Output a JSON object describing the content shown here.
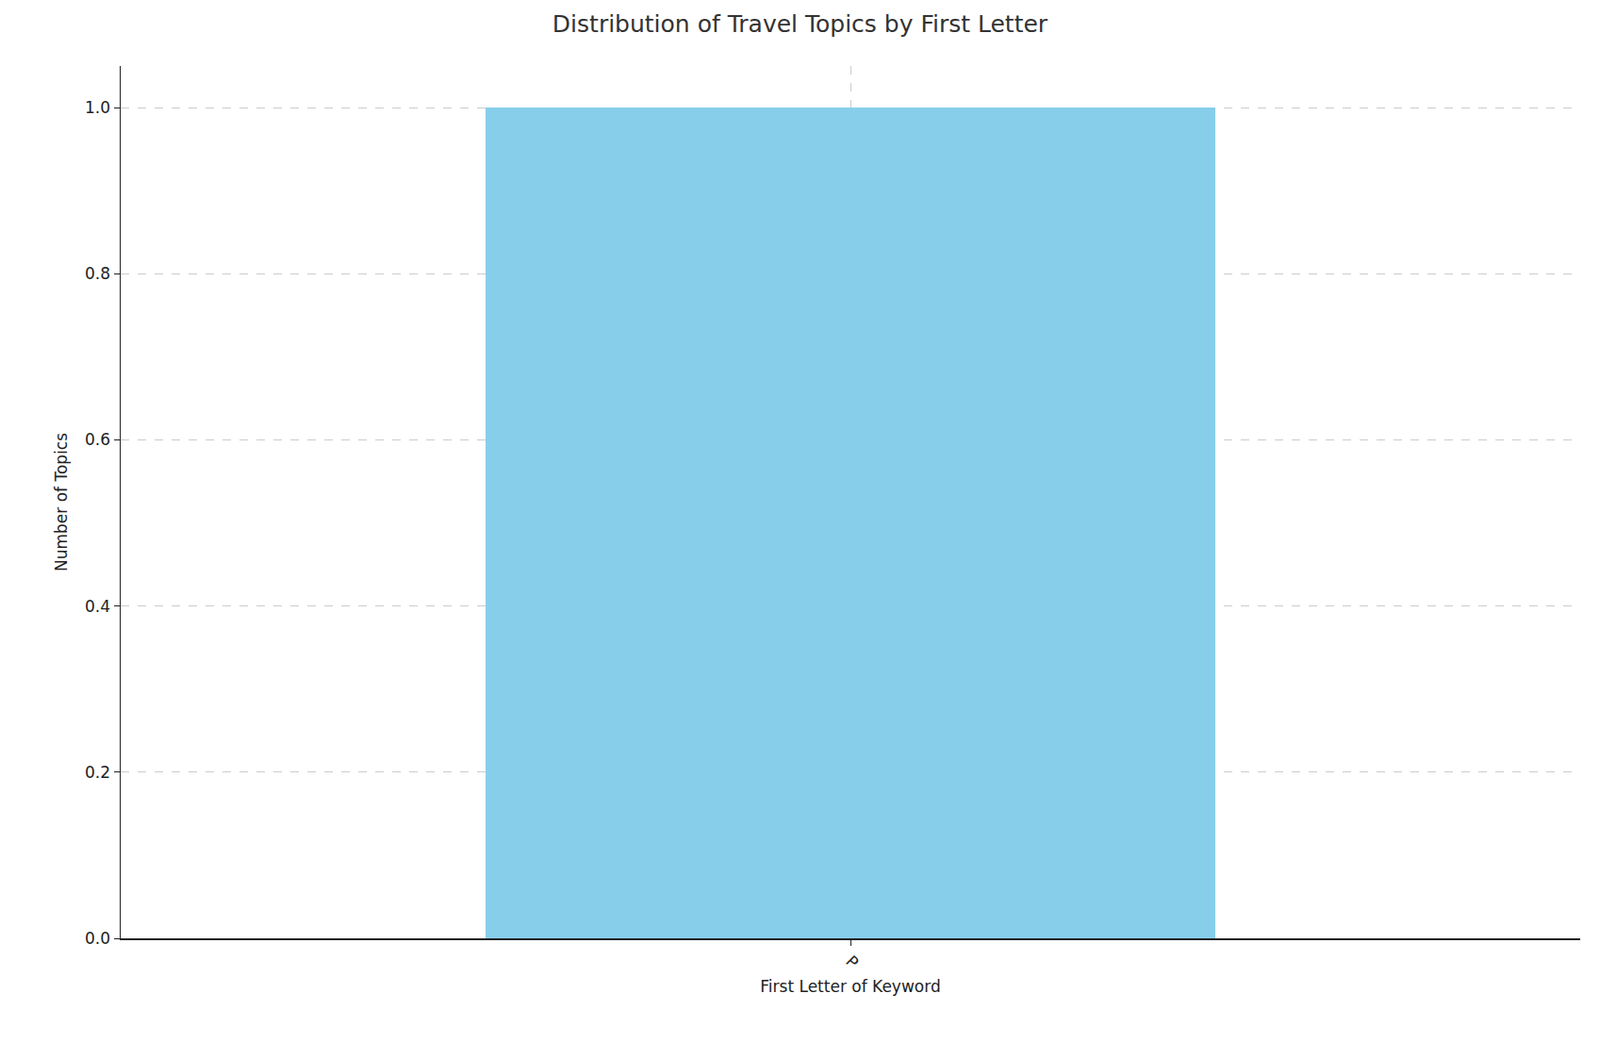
{
  "chart_data": {
    "type": "bar",
    "title": "Distribution of Travel Topics by First Letter",
    "x_label": "First Letter of Keyword",
    "y_label": "Number of Topics",
    "categories": [
      "P"
    ],
    "values": [
      1.0
    ],
    "color": "#87ceeb",
    "ylim": [
      0,
      1.05
    ],
    "yticks": [
      {
        "value": 0,
        "label": "0.0"
      },
      0.2,
      0.4,
      0.6,
      0.8,
      {
        "value": 1,
        "label": "1.0"
      }
    ],
    "grid": true
  }
}
